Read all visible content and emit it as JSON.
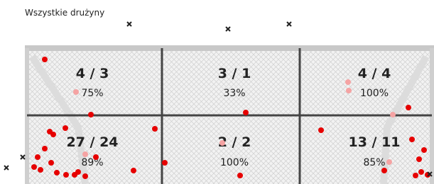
{
  "title": "Wszystkie drużyny",
  "zones": [
    {
      "score": "4 / 3",
      "percent": "75%"
    },
    {
      "score": "3 / 1",
      "percent": "33%"
    },
    {
      "score": "4 / 4",
      "percent": "100%"
    },
    {
      "score": "27 / 24",
      "percent": "89%"
    },
    {
      "score": "2 / 2",
      "percent": "100%"
    },
    {
      "score": "13 / 11",
      "percent": "85%"
    }
  ]
}
